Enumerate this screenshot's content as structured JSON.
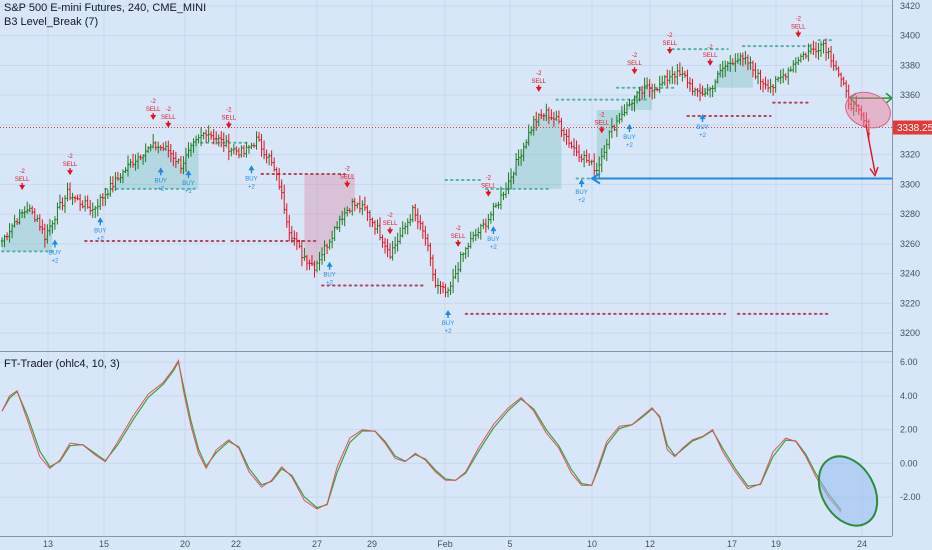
{
  "header": {
    "title": "S&P 500 E-mini Futures, 240, CME_MINI",
    "indicator": "B3 Level_Break (7)",
    "oscillator": "FT-Trader (ohlc4, 10, 3)"
  },
  "last_price": "3338.25",
  "colors": {
    "background": "#d8e7f8",
    "up": "#1f7a1f",
    "down": "#e0131f",
    "buy": "#1e88e5",
    "support_dots": "#52b5a8",
    "resist_dots": "#b2485a",
    "osc_fast": "#e0535a",
    "osc_slow": "#3aa046",
    "price_tag": "#e53935",
    "drawing_blue": "#1e88e5",
    "drawing_green": "#2e8b3d"
  },
  "chart_data": [
    {
      "type": "candlestick",
      "title": "S&P 500 E-mini Futures, 240, CME_MINI",
      "x_labels": [
        "13",
        "15",
        "19",
        "20",
        "22",
        "27",
        "29",
        "Feb",
        "5",
        "10",
        "12",
        "17",
        "19",
        "24"
      ],
      "y_ticks": [
        3200,
        3220,
        3240,
        3260,
        3280,
        3300,
        3320,
        3340,
        3360,
        3380,
        3400,
        3420
      ],
      "ylim": [
        3188,
        3424
      ],
      "grid": true,
      "last_price": 3338.25,
      "price_anchors": [
        [
          0,
          3262
        ],
        [
          5,
          3275
        ],
        [
          10,
          3284
        ],
        [
          14,
          3277
        ],
        [
          17,
          3265
        ],
        [
          21,
          3279
        ],
        [
          26,
          3294
        ],
        [
          31,
          3288
        ],
        [
          36,
          3283
        ],
        [
          41,
          3294
        ],
        [
          46,
          3304
        ],
        [
          51,
          3314
        ],
        [
          56,
          3322
        ],
        [
          61,
          3326
        ],
        [
          66,
          3323
        ],
        [
          71,
          3313
        ],
        [
          76,
          3326
        ],
        [
          81,
          3336
        ],
        [
          86,
          3330
        ],
        [
          91,
          3324
        ],
        [
          96,
          3321
        ],
        [
          101,
          3330
        ],
        [
          106,
          3318
        ],
        [
          110,
          3300
        ],
        [
          114,
          3270
        ],
        [
          119,
          3253
        ],
        [
          124,
          3245
        ],
        [
          129,
          3260
        ],
        [
          134,
          3277
        ],
        [
          139,
          3287
        ],
        [
          144,
          3283
        ],
        [
          149,
          3270
        ],
        [
          154,
          3254
        ],
        [
          159,
          3268
        ],
        [
          163,
          3282
        ],
        [
          168,
          3264
        ],
        [
          172,
          3232
        ],
        [
          177,
          3226
        ],
        [
          182,
          3250
        ],
        [
          186,
          3262
        ],
        [
          191,
          3272
        ],
        [
          196,
          3285
        ],
        [
          201,
          3302
        ],
        [
          206,
          3322
        ],
        [
          211,
          3342
        ],
        [
          216,
          3348
        ],
        [
          221,
          3342
        ],
        [
          226,
          3326
        ],
        [
          231,
          3318
        ],
        [
          236,
          3310
        ],
        [
          241,
          3334
        ],
        [
          246,
          3348
        ],
        [
          251,
          3358
        ],
        [
          256,
          3365
        ],
        [
          261,
          3366
        ],
        [
          266,
          3375
        ],
        [
          271,
          3372
        ],
        [
          276,
          3360
        ],
        [
          281,
          3364
        ],
        [
          286,
          3378
        ],
        [
          291,
          3385
        ],
        [
          296,
          3382
        ],
        [
          301,
          3370
        ],
        [
          306,
          3366
        ],
        [
          311,
          3375
        ],
        [
          316,
          3385
        ],
        [
          321,
          3390
        ],
        [
          326,
          3395
        ],
        [
          331,
          3379
        ],
        [
          336,
          3356
        ],
        [
          340,
          3348
        ],
        [
          344,
          3337
        ]
      ],
      "sell_signals": [
        {
          "bar": 8,
          "label": "SELL",
          "count": "-2"
        },
        {
          "bar": 27,
          "label": "SELL",
          "count": "-2"
        },
        {
          "bar": 60,
          "label": "SELL",
          "count": "-2"
        },
        {
          "bar": 66,
          "label": "SELL",
          "count": "-2"
        },
        {
          "bar": 90,
          "label": "SELL",
          "count": "-2"
        },
        {
          "bar": 137,
          "label": "SELL",
          "count": "-2"
        },
        {
          "bar": 154,
          "label": "SELL",
          "count": "-2"
        },
        {
          "bar": 181,
          "label": "SELL",
          "count": "-2"
        },
        {
          "bar": 193,
          "label": "SELL",
          "count": "-2"
        },
        {
          "bar": 213,
          "label": "SELL",
          "count": "-2"
        },
        {
          "bar": 238,
          "label": "SELL",
          "count": "-2"
        },
        {
          "bar": 251,
          "label": "SELL",
          "count": "-2"
        },
        {
          "bar": 265,
          "label": "SELL",
          "count": "-2"
        },
        {
          "bar": 281,
          "label": "SELL",
          "count": "-2"
        },
        {
          "bar": 316,
          "label": "SELL",
          "count": "-2"
        }
      ],
      "buy_signals": [
        {
          "bar": 21,
          "label": "BUY",
          "count": "+2"
        },
        {
          "bar": 39,
          "label": "BUY",
          "count": "+2"
        },
        {
          "bar": 63,
          "label": "BUY",
          "count": "+2"
        },
        {
          "bar": 74,
          "label": "BUY",
          "count": "+2"
        },
        {
          "bar": 99,
          "label": "BUY",
          "count": "+2"
        },
        {
          "bar": 130,
          "label": "BUY",
          "count": "+2"
        },
        {
          "bar": 177,
          "label": "BUY",
          "count": "+2"
        },
        {
          "bar": 195,
          "label": "BUY",
          "count": "+2"
        },
        {
          "bar": 230,
          "label": "BUY",
          "count": "+2"
        },
        {
          "bar": 249,
          "label": "BUY",
          "count": "+2"
        },
        {
          "bar": 278,
          "label": "BUY",
          "count": "+2"
        }
      ],
      "support_lines": [
        {
          "price": 3255,
          "from": 0,
          "to": 20
        },
        {
          "price": 3297,
          "from": 41,
          "to": 77
        },
        {
          "price": 3328,
          "from": 79,
          "to": 98
        },
        {
          "price": 3303,
          "from": 176,
          "to": 190
        },
        {
          "price": 3297,
          "from": 192,
          "to": 218
        },
        {
          "price": 3357,
          "from": 220,
          "to": 256
        },
        {
          "price": 3365,
          "from": 244,
          "to": 268
        },
        {
          "price": 3391,
          "from": 266,
          "to": 288
        },
        {
          "price": 3393,
          "from": 294,
          "to": 321
        },
        {
          "price": 3397,
          "from": 324,
          "to": 330
        },
        {
          "price": 3304,
          "from": 228,
          "to": 330
        }
      ],
      "resistance_lines": [
        {
          "price": 3262,
          "from": 33,
          "to": 89
        },
        {
          "price": 3262,
          "from": 91,
          "to": 125
        },
        {
          "price": 3307,
          "from": 103,
          "to": 136
        },
        {
          "price": 3232,
          "from": 127,
          "to": 168
        },
        {
          "price": 3213,
          "from": 184,
          "to": 287
        },
        {
          "price": 3213,
          "from": 292,
          "to": 328
        },
        {
          "price": 3346,
          "from": 272,
          "to": 305
        },
        {
          "price": 3355,
          "from": 306,
          "to": 320
        }
      ]
    },
    {
      "type": "line",
      "title": "FT-Trader (ohlc4, 10, 3)",
      "x_labels": [
        "13",
        "15",
        "19",
        "20",
        "22",
        "27",
        "29",
        "Feb",
        "5",
        "10",
        "12",
        "17",
        "19",
        "24"
      ],
      "y_ticks": [
        -2.0,
        0.0,
        2.0,
        4.0,
        6.0
      ],
      "y_tick_labels": [
        "-2.00",
        "0.00",
        "2.00",
        "4.00",
        "6.00"
      ],
      "ylim": [
        -4.3,
        6.6
      ],
      "series": [
        {
          "points": [
            [
              0,
              3.1
            ],
            [
              3,
              4.0
            ],
            [
              6,
              4.3
            ],
            [
              10,
              2.6
            ],
            [
              15,
              0.4
            ],
            [
              19,
              -0.3
            ],
            [
              23,
              0.2
            ],
            [
              27,
              1.2
            ],
            [
              32,
              1.1
            ],
            [
              37,
              0.5
            ],
            [
              41,
              0.1
            ],
            [
              46,
              1.3
            ],
            [
              52,
              2.8
            ],
            [
              58,
              4.1
            ],
            [
              64,
              4.8
            ],
            [
              68,
              5.6
            ],
            [
              70,
              6.1
            ],
            [
              72,
              4.3
            ],
            [
              75,
              2.2
            ],
            [
              78,
              0.6
            ],
            [
              81,
              -0.3
            ],
            [
              85,
              0.8
            ],
            [
              90,
              1.4
            ],
            [
              94,
              0.9
            ],
            [
              98,
              -0.5
            ],
            [
              103,
              -1.4
            ],
            [
              107,
              -1.0
            ],
            [
              111,
              -0.2
            ],
            [
              115,
              -0.8
            ],
            [
              120,
              -2.2
            ],
            [
              125,
              -2.7
            ],
            [
              129,
              -2.4
            ],
            [
              133,
              -0.2
            ],
            [
              138,
              1.5
            ],
            [
              143,
              2.0
            ],
            [
              148,
              1.9
            ],
            [
              152,
              1.2
            ],
            [
              156,
              0.3
            ],
            [
              160,
              0.1
            ],
            [
              164,
              0.6
            ],
            [
              168,
              0.2
            ],
            [
              172,
              -0.5
            ],
            [
              176,
              -1.0
            ],
            [
              180,
              -1.0
            ],
            [
              184,
              -0.5
            ],
            [
              189,
              0.9
            ],
            [
              195,
              2.3
            ],
            [
              201,
              3.3
            ],
            [
              206,
              3.9
            ],
            [
              211,
              3.1
            ],
            [
              216,
              1.8
            ],
            [
              221,
              0.9
            ],
            [
              226,
              -0.6
            ],
            [
              230,
              -1.3
            ],
            [
              234,
              -1.3
            ],
            [
              237,
              0.0
            ],
            [
              240,
              1.3
            ],
            [
              245,
              2.2
            ],
            [
              250,
              2.3
            ],
            [
              254,
              2.8
            ],
            [
              258,
              3.3
            ],
            [
              261,
              2.7
            ],
            [
              264,
              0.8
            ],
            [
              267,
              0.4
            ],
            [
              270,
              0.9
            ],
            [
              274,
              1.4
            ],
            [
              278,
              1.6
            ],
            [
              282,
              2.0
            ],
            [
              286,
              0.7
            ],
            [
              291,
              -0.5
            ],
            [
              296,
              -1.5
            ],
            [
              301,
              -1.2
            ],
            [
              306,
              0.7
            ],
            [
              311,
              1.5
            ],
            [
              315,
              1.3
            ],
            [
              319,
              0.4
            ],
            [
              323,
              -0.8
            ],
            [
              328,
              -2.0
            ],
            [
              333,
              -2.9
            ]
          ]
        }
      ]
    }
  ]
}
